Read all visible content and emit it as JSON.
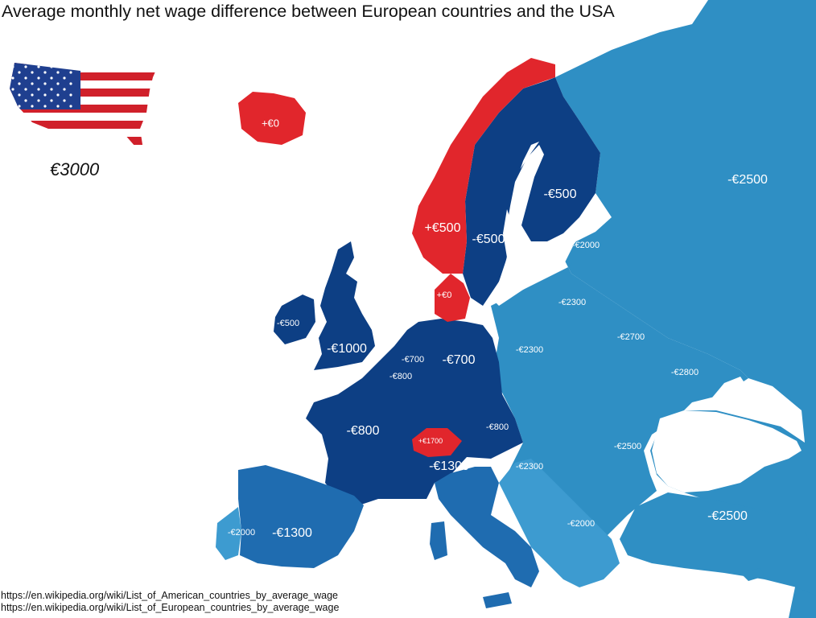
{
  "title": "Average monthly net wage difference between European countries and the USA",
  "usa": {
    "wage": "€3000"
  },
  "colors": {
    "red": "#e1262c",
    "dark_blue": "#0d3f84",
    "mid_blue": "#1f6cb0",
    "light_blue": "#2f8fc4",
    "lighter_blue": "#3d9bd0",
    "sea": "#ffffff"
  },
  "labels": {
    "iceland": "+€0",
    "norway": "+€500",
    "sweden": "-€500",
    "finland": "-€500",
    "denmark": "+€0",
    "ireland": "-€500",
    "uk": "-€1000",
    "netherlands": "-€700",
    "belgium": "-€800",
    "germany": "-€700",
    "france": "-€800",
    "switzerland": "+€1700",
    "austria": "-€800",
    "italy": "-€1300",
    "spain": "-€1300",
    "portugal": "-€2000",
    "russia": "-€2500",
    "estonia": "-€2000",
    "latvia": "-€2300",
    "poland": "-€2300",
    "belarus": "-€2700",
    "ukraine": "-€2800",
    "hungary": "-€2300",
    "romania": "-€2500",
    "balkans": "-€2000",
    "turkey": "-€2500"
  },
  "sources": [
    "https://en.wikipedia.org/wiki/List_of_American_countries_by_average_wage",
    "https://en.wikipedia.org/wiki/List_of_European_countries_by_average_wage"
  ]
}
